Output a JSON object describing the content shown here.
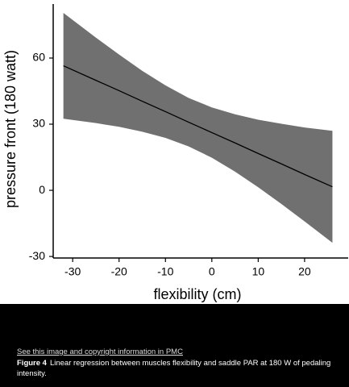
{
  "chart_data": {
    "type": "line",
    "xlabel": "flexibility (cm)",
    "ylabel": "pressure front (180 watt)",
    "x": [
      -32,
      -25,
      -20,
      -15,
      -10,
      -5,
      0,
      5,
      10,
      15,
      20,
      26
    ],
    "values": [
      56.5,
      49.9,
      45.2,
      40.4,
      35.7,
      30.9,
      26.2,
      21.5,
      16.7,
      12.0,
      7.2,
      1.6
    ],
    "band_upper": [
      80.5,
      69.3,
      61.6,
      54.2,
      47.6,
      41.9,
      37.6,
      34.5,
      32.0,
      30.2,
      28.5,
      27.0
    ],
    "band_lower": [
      32.5,
      30.5,
      28.8,
      26.6,
      23.8,
      19.9,
      14.8,
      8.5,
      1.4,
      -6.2,
      -14.1,
      -23.8
    ],
    "color": "#000000",
    "band_color": "#707070",
    "xlim": [
      -34.2,
      29.4
    ],
    "ylim": [
      -30.7,
      84.5
    ],
    "xticks": [
      -30,
      -20,
      -10,
      0,
      10,
      20
    ],
    "yticks": [
      -30,
      0,
      30,
      60
    ]
  },
  "caption": {
    "link": "See this image and copyright information in PMC",
    "label": "Figure 4",
    "text": "Linear regression between muscles flexibility and saddle PAR at 180 W of pedaling intensity."
  }
}
